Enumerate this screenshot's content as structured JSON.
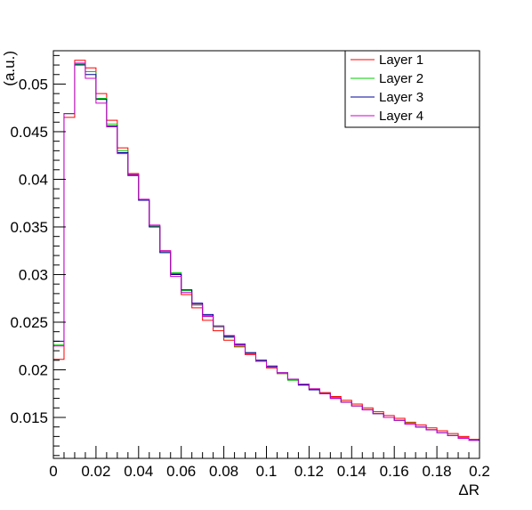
{
  "chart_data": {
    "type": "histogram",
    "title": "",
    "xlabel": "ΔR",
    "ylabel": "(a.u.)",
    "xlim": [
      0,
      0.2
    ],
    "ylim": [
      0.0107,
      0.0535
    ],
    "grid": false,
    "legend_position": "top-right",
    "bin_width": 0.005,
    "x_edges": [
      0,
      0.005,
      0.01,
      0.015,
      0.02,
      0.025,
      0.03,
      0.035,
      0.04,
      0.045,
      0.05,
      0.055,
      0.06,
      0.065,
      0.07,
      0.075,
      0.08,
      0.085,
      0.09,
      0.095,
      0.1,
      0.105,
      0.11,
      0.115,
      0.12,
      0.125,
      0.13,
      0.135,
      0.14,
      0.145,
      0.15,
      0.155,
      0.16,
      0.165,
      0.17,
      0.175,
      0.18,
      0.185,
      0.19,
      0.195,
      0.2
    ],
    "x_ticks": [
      {
        "value": 0,
        "label": "0"
      },
      {
        "value": 0.02,
        "label": "0.02"
      },
      {
        "value": 0.04,
        "label": "0.04"
      },
      {
        "value": 0.06,
        "label": "0.06"
      },
      {
        "value": 0.08,
        "label": "0.08"
      },
      {
        "value": 0.1,
        "label": "0.1"
      },
      {
        "value": 0.12,
        "label": "0.12"
      },
      {
        "value": 0.14,
        "label": "0.14"
      },
      {
        "value": 0.16,
        "label": "0.16"
      },
      {
        "value": 0.18,
        "label": "0.18"
      },
      {
        "value": 0.2,
        "label": "0.2"
      }
    ],
    "y_ticks": [
      {
        "value": 0.015,
        "label": "0.015"
      },
      {
        "value": 0.02,
        "label": "0.02"
      },
      {
        "value": 0.025,
        "label": "0.025"
      },
      {
        "value": 0.03,
        "label": "0.03"
      },
      {
        "value": 0.035,
        "label": "0.035"
      },
      {
        "value": 0.04,
        "label": "0.04"
      },
      {
        "value": 0.045,
        "label": "0.045"
      },
      {
        "value": 0.05,
        "label": "0.05"
      }
    ],
    "series": [
      {
        "name": "Layer 1",
        "color": "#ff0000",
        "values": [
          0.0211,
          0.0465,
          0.0525,
          0.0517,
          0.049,
          0.0462,
          0.0433,
          0.0406,
          0.0378,
          0.0351,
          0.0325,
          0.0301,
          0.0279,
          0.0265,
          0.0252,
          0.0241,
          0.0231,
          0.0224,
          0.0216,
          0.0209,
          0.0202,
          0.0196,
          0.019,
          0.0185,
          0.018,
          0.0176,
          0.0172,
          0.0168,
          0.0164,
          0.016,
          0.0156,
          0.0152,
          0.0149,
          0.0145,
          0.0142,
          0.0139,
          0.0136,
          0.0133,
          0.013,
          0.0127
        ]
      },
      {
        "name": "Layer 2",
        "color": "#00cc00",
        "values": [
          0.0226,
          0.0469,
          0.0521,
          0.0513,
          0.0485,
          0.0458,
          0.043,
          0.0404,
          0.0378,
          0.0351,
          0.0324,
          0.0302,
          0.0283,
          0.0269,
          0.0257,
          0.0245,
          0.0234,
          0.0225,
          0.0218,
          0.021,
          0.0203,
          0.0196,
          0.0189,
          0.0184,
          0.0179,
          0.0175,
          0.0171,
          0.0166,
          0.0162,
          0.0158,
          0.0154,
          0.015,
          0.0147,
          0.0144,
          0.014,
          0.0137,
          0.0134,
          0.0131,
          0.0129,
          0.0126
        ]
      },
      {
        "name": "Layer 3",
        "color": "#000099",
        "values": [
          0.023,
          0.0469,
          0.052,
          0.051,
          0.0484,
          0.0456,
          0.0428,
          0.0404,
          0.0378,
          0.035,
          0.0323,
          0.03,
          0.0284,
          0.027,
          0.0258,
          0.0246,
          0.0235,
          0.0227,
          0.0218,
          0.021,
          0.0204,
          0.0197,
          0.019,
          0.0184,
          0.0179,
          0.0175,
          0.017,
          0.0166,
          0.0162,
          0.0158,
          0.0154,
          0.015,
          0.0147,
          0.0143,
          0.014,
          0.0137,
          0.0134,
          0.0131,
          0.0128,
          0.0126
        ]
      },
      {
        "name": "Layer 4",
        "color": "#cc00cc",
        "values": [
          0.0225,
          0.0469,
          0.0522,
          0.0506,
          0.048,
          0.0455,
          0.0427,
          0.0405,
          0.0379,
          0.0352,
          0.0325,
          0.0298,
          0.0281,
          0.0268,
          0.0256,
          0.0246,
          0.0236,
          0.0226,
          0.0217,
          0.0209,
          0.0203,
          0.0197,
          0.019,
          0.0185,
          0.018,
          0.0175,
          0.017,
          0.0166,
          0.0162,
          0.0158,
          0.0154,
          0.015,
          0.0147,
          0.0143,
          0.014,
          0.0137,
          0.0134,
          0.0131,
          0.0128,
          0.0126
        ]
      }
    ]
  }
}
